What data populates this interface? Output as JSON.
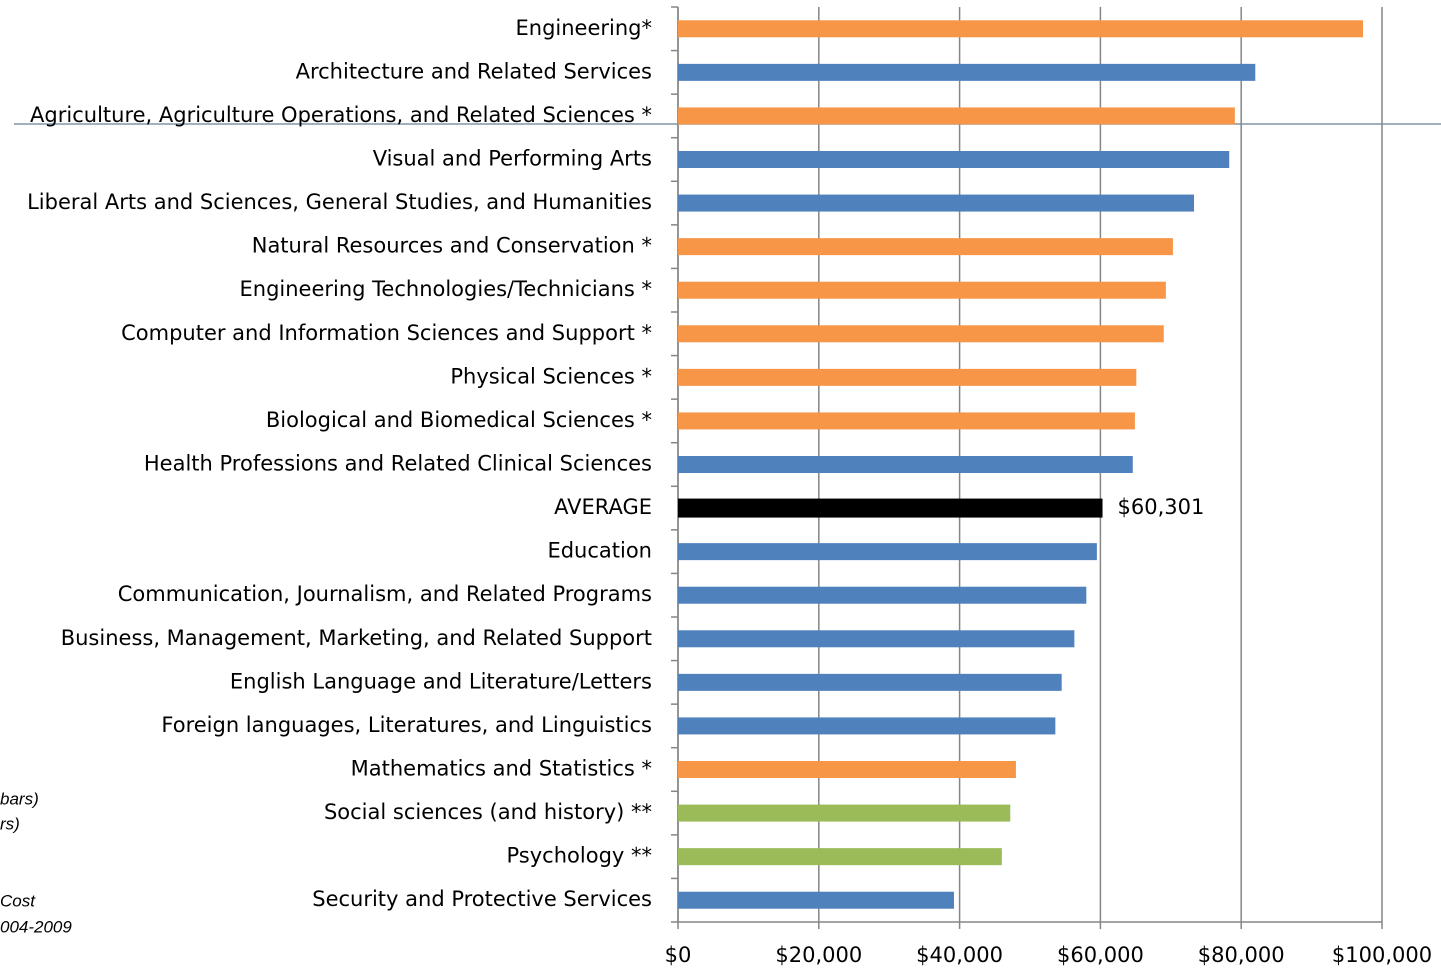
{
  "chart_data": {
    "type": "bar",
    "orientation": "horizontal",
    "categories": [
      "Engineering*",
      "Architecture and Related Services",
      "Agriculture, Agriculture Operations, and Related Sciences *",
      "Visual and Performing Arts",
      "Liberal Arts and Sciences, General Studies, and Humanities",
      "Natural Resources and Conservation *",
      "Engineering Technologies/Technicians *",
      "Computer and Information Sciences and Support *",
      "Physical Sciences *",
      "Biological and Biomedical Sciences *",
      "Health Professions and Related Clinical Sciences",
      "AVERAGE",
      "Education",
      "Communication, Journalism, and Related Programs",
      "Business, Management, Marketing, and Related Support",
      "English Language and Literature/Letters",
      "Foreign languages, Literatures, and Linguistics",
      "Mathematics and Statistics *",
      "Social sciences (and history) **",
      "Psychology **",
      "Security and Protective Services"
    ],
    "values": [
      97300,
      82000,
      79100,
      78300,
      73300,
      70300,
      69300,
      69000,
      65100,
      64900,
      64600,
      60301,
      59500,
      58000,
      56300,
      54500,
      53600,
      48000,
      47200,
      46000,
      39200
    ],
    "value_labels": [
      null,
      null,
      null,
      null,
      null,
      null,
      null,
      null,
      null,
      null,
      null,
      "$60,301",
      null,
      null,
      null,
      null,
      null,
      null,
      null,
      null,
      null
    ],
    "colors": [
      "#f79646",
      "#4f81bd",
      "#f79646",
      "#4f81bd",
      "#4f81bd",
      "#f79646",
      "#f79646",
      "#f79646",
      "#f79646",
      "#f79646",
      "#4f81bd",
      "#000000",
      "#4f81bd",
      "#4f81bd",
      "#4f81bd",
      "#4f81bd",
      "#4f81bd",
      "#f79646",
      "#9bbb59",
      "#9bbb59",
      "#4f81bd"
    ],
    "xlim": [
      0,
      100000
    ],
    "xticks": [
      {
        "value": 0,
        "label": "$0"
      },
      {
        "value": 20000,
        "label": "$20,000"
      },
      {
        "value": 40000,
        "label": "$40,000"
      },
      {
        "value": 60000,
        "label": "$60,000"
      },
      {
        "value": 80000,
        "label": "$80,000"
      },
      {
        "value": 100000,
        "label": "$100,000"
      }
    ],
    "grid": true,
    "annotations": [
      "bars)",
      "rs)",
      "Cost",
      "004-2009"
    ]
  }
}
